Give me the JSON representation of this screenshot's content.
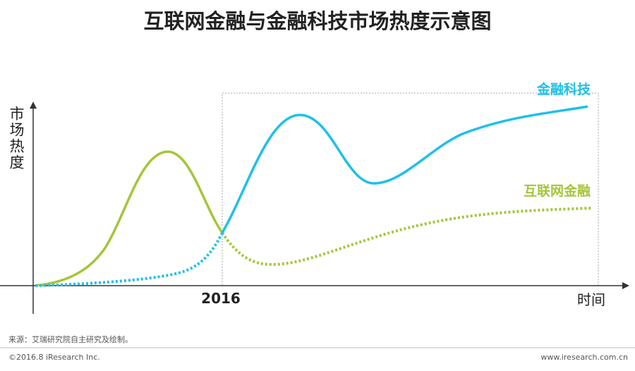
{
  "header": {
    "title": "互联网金融与金融科技市场热度示意图"
  },
  "diagram": {
    "y_axis_label": "市场热度",
    "x_axis_label": "时间",
    "marker_label": "2016",
    "curves": [
      {
        "label": "金融科技"
      },
      {
        "label": "互联网金融"
      }
    ]
  },
  "footer": {
    "source": "来源：艾瑞研究院自主研究及绘制。",
    "copyright": "©2016.8 iResearch Inc.",
    "website": "www.iresearch.com.cn"
  }
}
